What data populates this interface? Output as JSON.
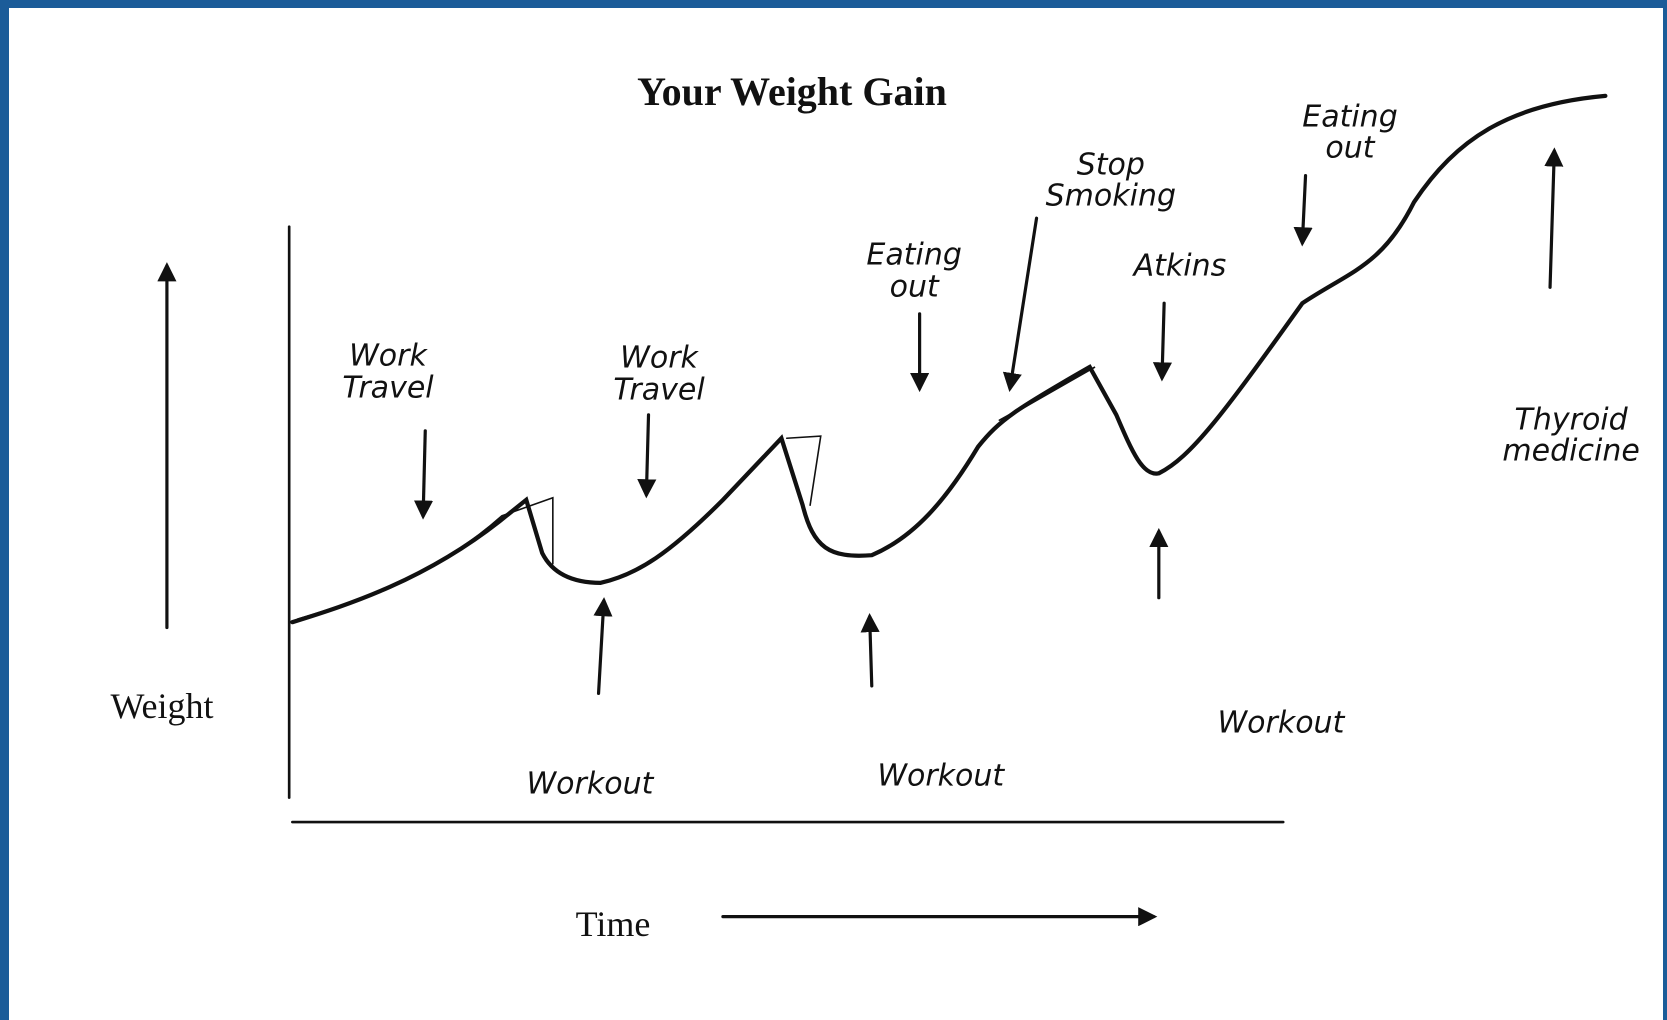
{
  "title": "Your Weight Gain",
  "y_label": "Weight",
  "x_label": "Time",
  "annotations": [
    "Work\nTravel",
    "Work\nTravel",
    "Eating\nout",
    "Stop\nSmoking",
    "Atkins",
    "Eating\nout",
    "Thyroid\nmedicine",
    "Workout",
    "Workout",
    "Workout"
  ]
}
